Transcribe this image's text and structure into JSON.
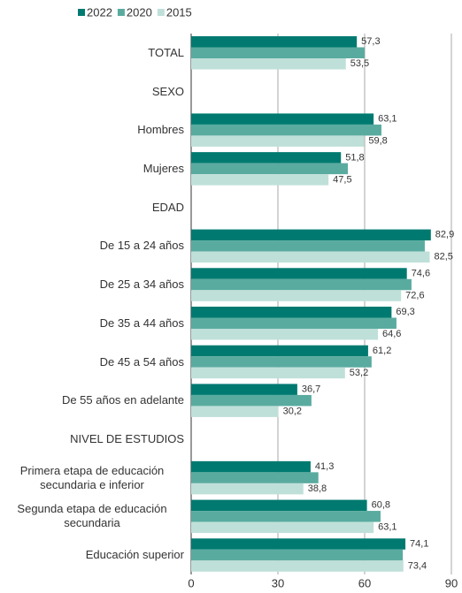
{
  "chart_data": {
    "type": "bar",
    "orientation": "horizontal",
    "categories": [
      "TOTAL",
      "SEXO",
      "Hombres",
      "Mujeres",
      "EDAD",
      "De 15 a 24 años",
      "De 25 a 34 años",
      "De 35 a 44 años",
      "De 45 a 54 años",
      "De 55 años en adelante",
      "NIVEL DE ESTUDIOS",
      "Primera etapa de educación secundaria e inferior",
      "Segunda etapa de educación secundaria",
      "Educación superior"
    ],
    "series": [
      {
        "name": "2022",
        "color": "#007a70",
        "values": [
          57.3,
          null,
          63.1,
          51.8,
          null,
          82.9,
          74.6,
          69.3,
          61.2,
          36.7,
          null,
          41.3,
          60.8,
          74.1
        ],
        "value_labels": [
          "57,3",
          null,
          "63,1",
          "51,8",
          null,
          "82,9",
          "74,6",
          "69,3",
          "61,2",
          "36,7",
          null,
          "41,3",
          "60,8",
          "74,1"
        ]
      },
      {
        "name": "2020",
        "color": "#5aab9f",
        "values": [
          60,
          null,
          65.8,
          54.2,
          null,
          80.8,
          76.2,
          71,
          62.4,
          41.6,
          null,
          44,
          65.5,
          73.2
        ]
      },
      {
        "name": "2015",
        "color": "#bfe0d9",
        "values": [
          53.5,
          null,
          59.8,
          47.5,
          null,
          82.5,
          72.6,
          64.6,
          53.2,
          30.2,
          null,
          38.8,
          63.1,
          73.4
        ],
        "value_labels": [
          "53,5",
          null,
          "59,8",
          "47,5",
          null,
          "82,5",
          "72,6",
          "64,6",
          "53,2",
          "30,2",
          null,
          "38,8",
          "63,1",
          "73,4"
        ]
      }
    ],
    "xlim": [
      0,
      90
    ],
    "xticks": [
      0,
      30,
      60,
      90
    ],
    "grid": true
  }
}
